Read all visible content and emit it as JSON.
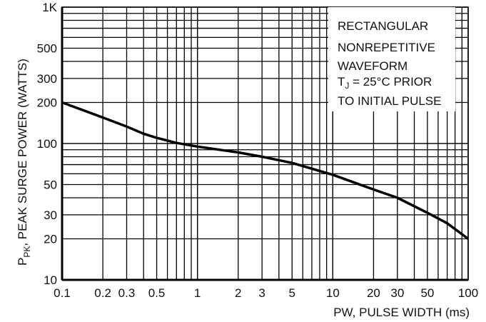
{
  "chart_data": {
    "type": "line",
    "x_scale": "log",
    "y_scale": "log",
    "xlim": [
      0.1,
      100
    ],
    "ylim": [
      10,
      1000
    ],
    "grid": true,
    "xlabel": "PW, PULSE WIDTH (ms)",
    "ylabel": {
      "prefix": "P",
      "subscript": "PK",
      "rest": ", PEAK SURGE POWER (WATTS)"
    },
    "x_ticks": [
      {
        "value": 0.1,
        "label": "0.1"
      },
      {
        "value": 0.2,
        "label": "0.2"
      },
      {
        "value": 0.3,
        "label": "0.3"
      },
      {
        "value": 0.5,
        "label": "0.5"
      },
      {
        "value": 1,
        "label": "1"
      },
      {
        "value": 2,
        "label": "2"
      },
      {
        "value": 3,
        "label": "3"
      },
      {
        "value": 5,
        "label": "5"
      },
      {
        "value": 10,
        "label": "10"
      },
      {
        "value": 20,
        "label": "20"
      },
      {
        "value": 30,
        "label": "30"
      },
      {
        "value": 50,
        "label": "50"
      },
      {
        "value": 100,
        "label": "100"
      }
    ],
    "y_ticks": [
      {
        "value": 10,
        "label": "10"
      },
      {
        "value": 20,
        "label": "20"
      },
      {
        "value": 30,
        "label": "30"
      },
      {
        "value": 50,
        "label": "50"
      },
      {
        "value": 100,
        "label": "100"
      },
      {
        "value": 200,
        "label": "200"
      },
      {
        "value": 300,
        "label": "300"
      },
      {
        "value": 500,
        "label": "500"
      },
      {
        "value": 1000,
        "label": "1K"
      }
    ],
    "annotation": {
      "line1": "RECTANGULAR",
      "line2": "NONREPETITIVE",
      "line3": "WAVEFORM",
      "line4_prefix": "T",
      "line4_subscript": "J",
      "line4_rest": " = 25°C PRIOR",
      "line5": "TO INITIAL PULSE"
    },
    "series": [
      {
        "x": [
          0.1,
          0.2,
          0.3,
          0.4,
          0.5,
          0.7,
          1,
          2,
          3,
          5,
          10,
          20,
          30,
          50,
          70,
          100
        ],
        "y": [
          200,
          155,
          133,
          118,
          110,
          101,
          95,
          86,
          80,
          72,
          59,
          46,
          40,
          31,
          26,
          20
        ]
      }
    ]
  }
}
